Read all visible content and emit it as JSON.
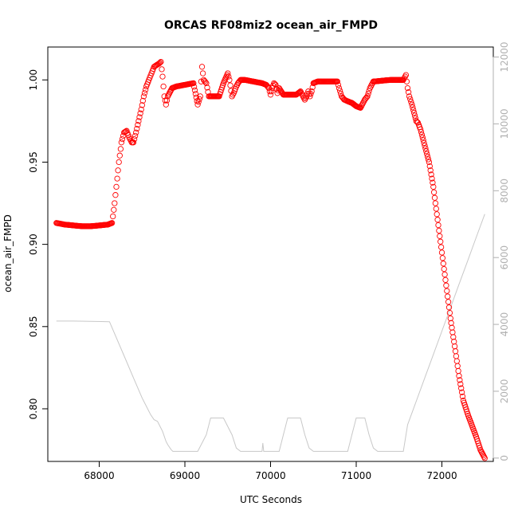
{
  "chart_data": {
    "type": "scatter",
    "title": "ORCAS RF08miz2 ocean_air_FMPD",
    "xlabel": "UTC Seconds",
    "ylabel": "ocean_air_FMPD",
    "xlim": [
      67400,
      72600
    ],
    "ylim": [
      0.768,
      1.02
    ],
    "y2lim": [
      -100,
      12300
    ],
    "x_ticks": [
      68000,
      69000,
      70000,
      71000,
      72000
    ],
    "y_ticks": [
      0.8,
      0.85,
      0.9,
      0.95,
      1.0
    ],
    "y_tick_labels": [
      "0.80",
      "0.85",
      "0.90",
      "0.95",
      "1.00"
    ],
    "y2_ticks": [
      0,
      2000,
      4000,
      6000,
      8000,
      10000,
      12000
    ],
    "series": [
      {
        "kind": "points",
        "axis": "left",
        "color": "#ff0000",
        "x": [
          67500,
          67600,
          67700,
          67800,
          67900,
          68000,
          68100,
          68150,
          68180,
          68200,
          68230,
          68260,
          68290,
          68320,
          68350,
          68380,
          68400,
          68430,
          68460,
          68490,
          68520,
          68550,
          68580,
          68610,
          68640,
          68670,
          68700,
          68720,
          68740,
          68760,
          68780,
          68800,
          68850,
          68900,
          69000,
          69100,
          69150,
          69180,
          69200,
          69220,
          69250,
          69280,
          69300,
          69350,
          69400,
          69450,
          69500,
          69520,
          69550,
          69570,
          69600,
          69620,
          69650,
          69700,
          69800,
          69900,
          69950,
          69980,
          70000,
          70020,
          70040,
          70060,
          70080,
          70100,
          70150,
          70200,
          70300,
          70350,
          70380,
          70400,
          70420,
          70440,
          70460,
          70480,
          70500,
          70550,
          70600,
          70700,
          70780,
          70800,
          70830,
          70860,
          70900,
          70950,
          71000,
          71050,
          71080,
          71100,
          71130,
          71160,
          71200,
          71300,
          71400,
          71500,
          71550,
          71580,
          71600,
          71620,
          71650,
          71700,
          71720,
          71750,
          71800,
          71850,
          71900,
          71950,
          72000,
          72050,
          72100,
          72150,
          72200,
          72250,
          72300,
          72350,
          72400,
          72450,
          72500
        ],
        "y": [
          0.913,
          0.912,
          0.9115,
          0.911,
          0.911,
          0.9115,
          0.912,
          0.913,
          0.925,
          0.935,
          0.95,
          0.962,
          0.968,
          0.969,
          0.965,
          0.962,
          0.962,
          0.968,
          0.975,
          0.982,
          0.99,
          0.996,
          1.0,
          1.004,
          1.008,
          1.009,
          1.01,
          1.011,
          1.002,
          0.99,
          0.985,
          0.99,
          0.995,
          0.996,
          0.997,
          0.998,
          0.985,
          0.99,
          1.008,
          1.0,
          0.998,
          0.99,
          0.99,
          0.99,
          0.99,
          0.998,
          1.004,
          1.0,
          0.99,
          0.992,
          0.996,
          0.998,
          1.0,
          1.0,
          0.999,
          0.998,
          0.997,
          0.995,
          0.991,
          0.995,
          0.998,
          0.997,
          0.992,
          0.995,
          0.991,
          0.991,
          0.991,
          0.993,
          0.99,
          0.988,
          0.99,
          0.993,
          0.99,
          0.993,
          0.998,
          0.999,
          0.999,
          0.999,
          0.999,
          0.995,
          0.99,
          0.988,
          0.987,
          0.986,
          0.984,
          0.983,
          0.986,
          0.988,
          0.99,
          0.995,
          0.999,
          0.9995,
          1.0,
          1.0,
          1.0,
          1.003,
          0.995,
          0.99,
          0.985,
          0.975,
          0.974,
          0.97,
          0.96,
          0.95,
          0.935,
          0.915,
          0.895,
          0.875,
          0.855,
          0.838,
          0.82,
          0.805,
          0.797,
          0.79,
          0.783,
          0.775,
          0.77
        ]
      },
      {
        "kind": "line",
        "axis": "right",
        "color": "#c8c8c8",
        "x": [
          67500,
          67700,
          67900,
          68120,
          68200,
          68300,
          68400,
          68500,
          68600,
          68640,
          68680,
          68710,
          68740,
          68780,
          68800,
          68840,
          68860,
          69000,
          69150,
          69250,
          69300,
          69350,
          69450,
          69550,
          69600,
          69650,
          69700,
          69800,
          69900,
          69910,
          69920,
          69930,
          69950,
          70000,
          70100,
          70150,
          70200,
          70250,
          70300,
          70350,
          70400,
          70450,
          70500,
          70550,
          70600,
          70700,
          70800,
          70900,
          70950,
          71000,
          71050,
          71100,
          71150,
          71200,
          71250,
          71350,
          71450,
          71550,
          71600,
          71700,
          71800,
          71900,
          72000,
          72100,
          72200,
          72300,
          72400,
          72500
        ],
        "y": [
          4100,
          4100,
          4090,
          4080,
          3600,
          3000,
          2400,
          1800,
          1300,
          1150,
          1100,
          950,
          800,
          500,
          400,
          250,
          200,
          200,
          200,
          700,
          1200,
          1200,
          1200,
          700,
          300,
          200,
          200,
          200,
          200,
          450,
          200,
          200,
          200,
          200,
          200,
          700,
          1200,
          1200,
          1200,
          1200,
          700,
          300,
          200,
          200,
          200,
          200,
          200,
          200,
          700,
          1200,
          1200,
          1200,
          700,
          300,
          200,
          200,
          200,
          200,
          1000,
          1700,
          2400,
          3100,
          3800,
          4500,
          5200,
          5900,
          6600,
          7300
        ]
      }
    ]
  }
}
